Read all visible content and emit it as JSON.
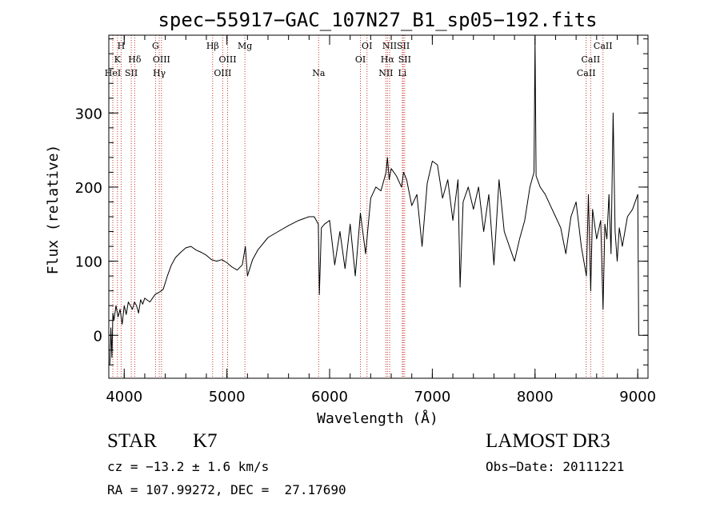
{
  "chart_data": {
    "type": "line",
    "title": "spec−55917−GAC_107N27_B1_sp05−192.fits",
    "xlabel": "Wavelength (Å)",
    "ylabel": "Flux (relative)",
    "xlim": [
      3850,
      9100
    ],
    "ylim": [
      -58,
      405
    ],
    "xticks": [
      4000,
      5000,
      6000,
      7000,
      8000,
      9000
    ],
    "yticks": [
      0,
      100,
      200,
      300
    ],
    "series": [
      {
        "color": "#000000",
        "x": [
          3860,
          3870,
          3880,
          3890,
          3900,
          3920,
          3940,
          3960,
          3980,
          4000,
          4020,
          4040,
          4060,
          4080,
          4100,
          4120,
          4140,
          4160,
          4180,
          4200,
          4250,
          4300,
          4340,
          4380,
          4420,
          4460,
          4500,
          4550,
          4600,
          4650,
          4700,
          4750,
          4800,
          4850,
          4900,
          4950,
          5000,
          5050,
          5100,
          5150,
          5180,
          5200,
          5250,
          5300,
          5400,
          5500,
          5600,
          5700,
          5800,
          5850,
          5890,
          5900,
          5920,
          5950,
          6000,
          6050,
          6100,
          6150,
          6200,
          6250,
          6300,
          6350,
          6400,
          6450,
          6500,
          6550,
          6563,
          6580,
          6600,
          6650,
          6700,
          6720,
          6750,
          6800,
          6850,
          6900,
          6950,
          7000,
          7050,
          7100,
          7150,
          7200,
          7250,
          7270,
          7300,
          7350,
          7400,
          7450,
          7500,
          7550,
          7600,
          7650,
          7700,
          7750,
          7800,
          7850,
          7900,
          7950,
          7990,
          8000,
          8010,
          8050,
          8100,
          8150,
          8200,
          8250,
          8300,
          8350,
          8400,
          8450,
          8500,
          8520,
          8542,
          8560,
          8600,
          8640,
          8662,
          8680,
          8700,
          8720,
          8740,
          8760,
          8780,
          8800,
          8820,
          8850,
          8900,
          8950,
          9000,
          9010
        ],
        "y": [
          -40,
          10,
          -30,
          30,
          20,
          40,
          25,
          35,
          15,
          40,
          28,
          45,
          40,
          35,
          45,
          40,
          30,
          48,
          42,
          50,
          45,
          55,
          58,
          62,
          80,
          95,
          105,
          112,
          118,
          120,
          115,
          112,
          108,
          102,
          100,
          102,
          98,
          92,
          88,
          95,
          120,
          80,
          102,
          115,
          132,
          140,
          148,
          155,
          160,
          160,
          150,
          55,
          145,
          150,
          155,
          95,
          140,
          90,
          150,
          80,
          165,
          110,
          185,
          200,
          195,
          220,
          240,
          210,
          225,
          215,
          200,
          220,
          210,
          175,
          190,
          120,
          205,
          235,
          230,
          185,
          210,
          155,
          210,
          65,
          180,
          200,
          170,
          200,
          140,
          190,
          95,
          210,
          140,
          120,
          100,
          130,
          155,
          200,
          220,
          400,
          215,
          200,
          190,
          175,
          160,
          145,
          110,
          160,
          180,
          120,
          80,
          190,
          60,
          170,
          130,
          155,
          35,
          150,
          130,
          190,
          110,
          300,
          140,
          100,
          145,
          120,
          160,
          170,
          190,
          0
        ]
      }
    ],
    "annotations": [
      {
        "label": "H",
        "x": 3970,
        "row": 0
      },
      {
        "label": "K",
        "x": 3934,
        "row": 1
      },
      {
        "label": "HeI",
        "x": 3889,
        "row": 2
      },
      {
        "label": "SII",
        "x": 4069,
        "row": 2
      },
      {
        "label": "Hδ",
        "x": 4102,
        "row": 1
      },
      {
        "label": "G",
        "x": 4305,
        "row": 0
      },
      {
        "label": "OIII",
        "x": 4363,
        "row": 1
      },
      {
        "label": "Hγ",
        "x": 4341,
        "row": 2
      },
      {
        "label": "Hβ",
        "x": 4861,
        "row": 0
      },
      {
        "label": "OIII",
        "x": 5007,
        "row": 1
      },
      {
        "label": "OIII",
        "x": 4959,
        "row": 2
      },
      {
        "label": "Mg",
        "x": 5175,
        "row": 0
      },
      {
        "label": "Na",
        "x": 5893,
        "row": 2
      },
      {
        "label": "OI",
        "x": 6364,
        "row": 0
      },
      {
        "label": "OI",
        "x": 6300,
        "row": 1
      },
      {
        "label": "NII",
        "x": 6584,
        "row": 0
      },
      {
        "label": "SII",
        "x": 6717,
        "row": 0
      },
      {
        "label": "Hα",
        "x": 6563,
        "row": 1
      },
      {
        "label": "SII",
        "x": 6731,
        "row": 1
      },
      {
        "label": "NII",
        "x": 6548,
        "row": 2
      },
      {
        "label": "Li",
        "x": 6708,
        "row": 2
      },
      {
        "label": "CaII",
        "x": 8662,
        "row": 0
      },
      {
        "label": "CaII",
        "x": 8542,
        "row": 1
      },
      {
        "label": "CaII",
        "x": 8498,
        "row": 2
      }
    ]
  },
  "info": {
    "object_class": "STAR",
    "subclass": "K7",
    "cz": "cz = −13.2 ± 1.6 km/s",
    "coords": "RA = 107.99272, DEC =  27.17690",
    "survey": "LAMOST DR3",
    "obs_date": "Obs−Date: 20111221"
  }
}
